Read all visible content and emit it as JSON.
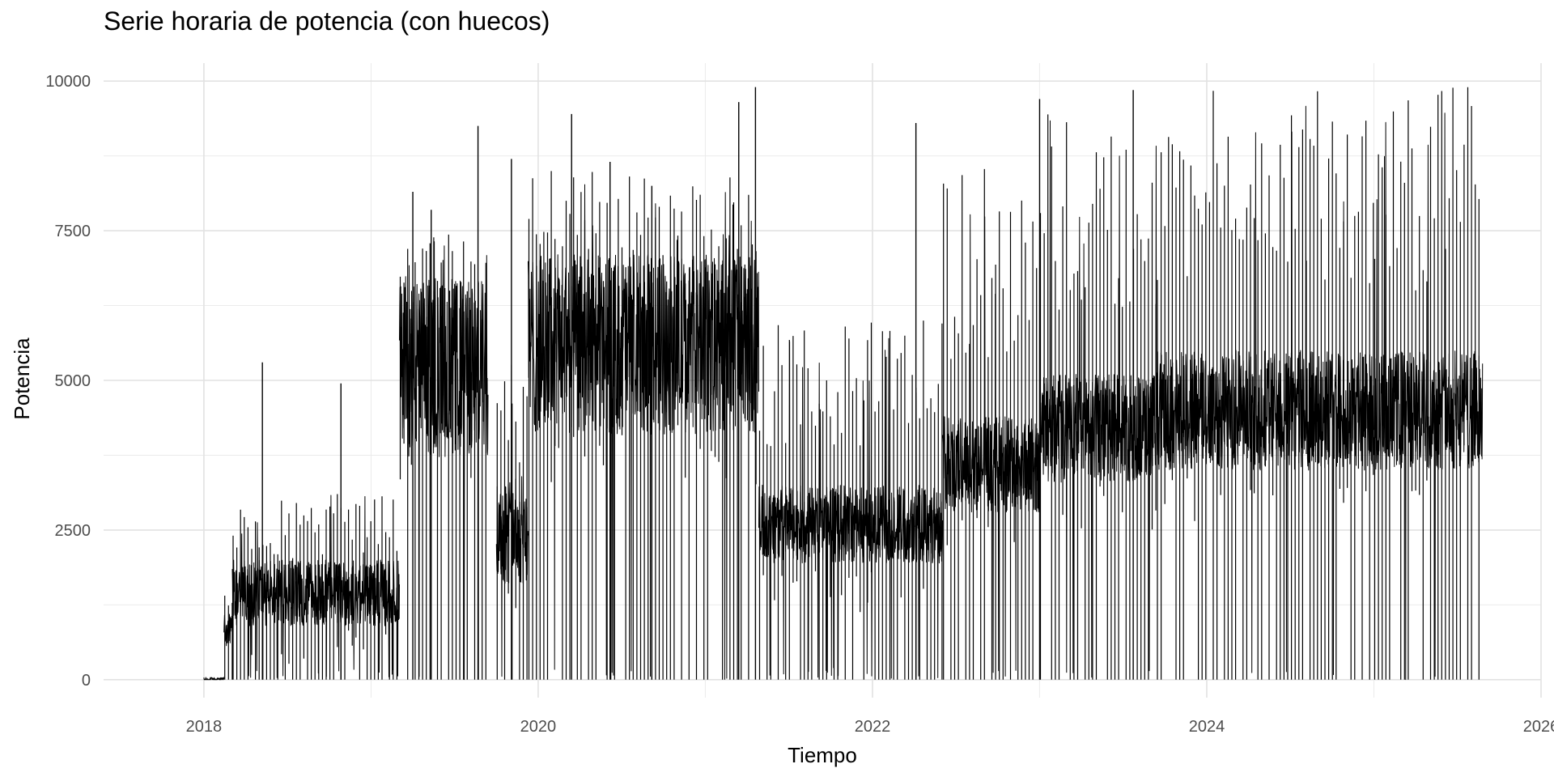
{
  "chart_data": {
    "type": "line",
    "title": "Serie horaria de potencia (con huecos)",
    "xlabel": "Tiempo",
    "ylabel": "Potencia",
    "xlim": [
      2017.4,
      2026.0
    ],
    "ylim": [
      -300,
      10300
    ],
    "x_ticks": [
      2018,
      2020,
      2022,
      2024,
      2026
    ],
    "x_tick_labels": [
      "2018",
      "2020",
      "2022",
      "2024",
      "2026"
    ],
    "y_ticks": [
      0,
      2500,
      5000,
      7500,
      10000
    ],
    "y_tick_labels": [
      "0",
      "2500",
      "5000",
      "7500",
      "10000"
    ],
    "grid": true,
    "legend": "none",
    "line_color": "#000000",
    "series": [
      {
        "segments": [
          {
            "start": 2018.0,
            "end": 2018.12,
            "base": 0,
            "band": 40,
            "dip": 0,
            "spike": 0
          },
          {
            "start": 2018.12,
            "end": 2018.17,
            "base": 800,
            "band": 300,
            "dip": 0,
            "spike": 1500
          },
          {
            "start": 2018.17,
            "end": 2019.17,
            "base": 1450,
            "band": 550,
            "dip": 0,
            "spike": 3100
          },
          {
            "start": 2019.17,
            "end": 2019.7,
            "base": 5200,
            "band": 1500,
            "dip": 0,
            "spike": 7500
          },
          {
            "start": 2019.75,
            "end": 2019.94,
            "base": 2500,
            "band": 900,
            "dip": 0,
            "spike": 5500
          },
          {
            "start": 2019.94,
            "end": 2021.32,
            "base": 5600,
            "band": 1500,
            "dip": 0,
            "spike": 8500
          },
          {
            "start": 2021.32,
            "end": 2022.42,
            "base": 2600,
            "band": 650,
            "dip": 0,
            "spike": 6000
          },
          {
            "start": 2022.42,
            "end": 2023.0,
            "base": 3600,
            "band": 800,
            "dip": 0,
            "spike": 8600
          },
          {
            "start": 2023.0,
            "end": 2023.7,
            "base": 4200,
            "band": 900,
            "dip": 0,
            "spike": 9700
          },
          {
            "start": 2023.7,
            "end": 2025.0,
            "base": 4500,
            "band": 1000,
            "dip": 0,
            "spike": 9900
          },
          {
            "start": 2025.0,
            "end": 2025.65,
            "base": 4500,
            "band": 1000,
            "dip": 0,
            "spike": 9900
          }
        ],
        "peaks": [
          {
            "x": 2018.35,
            "y": 5300
          },
          {
            "x": 2018.82,
            "y": 4950
          },
          {
            "x": 2019.25,
            "y": 8150
          },
          {
            "x": 2019.36,
            "y": 7850
          },
          {
            "x": 2019.64,
            "y": 9250
          },
          {
            "x": 2019.84,
            "y": 8700
          },
          {
            "x": 2020.2,
            "y": 9450
          },
          {
            "x": 2020.43,
            "y": 8650
          },
          {
            "x": 2020.68,
            "y": 8250
          },
          {
            "x": 2021.2,
            "y": 9650
          },
          {
            "x": 2021.3,
            "y": 9900
          },
          {
            "x": 2022.26,
            "y": 9300
          },
          {
            "x": 2023.0,
            "y": 9700
          },
          {
            "x": 2023.56,
            "y": 9850
          }
        ]
      }
    ]
  }
}
